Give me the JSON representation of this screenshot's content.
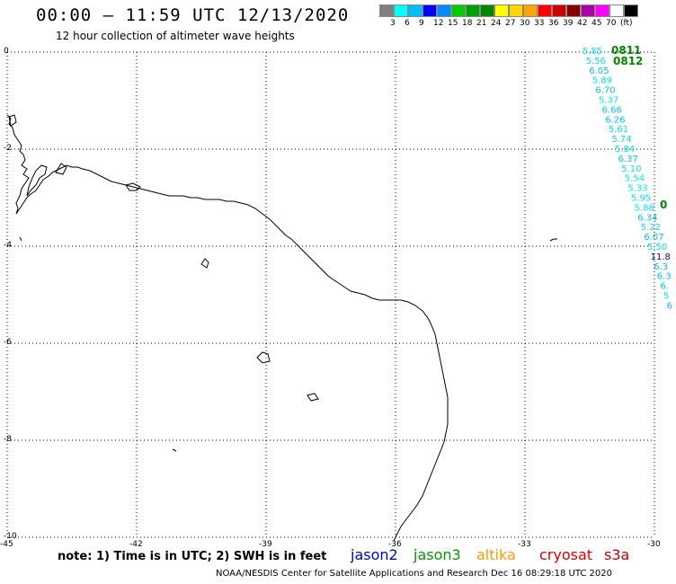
{
  "header": {
    "title": "00:00 – 11:59 UTC 12/13/2020",
    "subtitle": "12 hour collection of altimeter wave heights"
  },
  "legend": {
    "swatches": [
      "#808080",
      "#00ffff",
      "#00bfff",
      "#0000ff",
      "#008bff",
      "#00cc00",
      "#00a000",
      "#008800",
      "#ffff00",
      "#ffd700",
      "#ffa500",
      "#ff0000",
      "#cc0000",
      "#880000",
      "#aa00aa",
      "#ff00ff",
      "#ffffff",
      "#000000"
    ],
    "labels": [
      "3",
      "6",
      "9",
      "12",
      "15",
      "18",
      "21",
      "24",
      "27",
      "30",
      "33",
      "36",
      "39",
      "42",
      "45",
      "70",
      "(ft)"
    ]
  },
  "axes": {
    "x_ticks": [
      "-45",
      "-42",
      "-39",
      "-36",
      "-33",
      "-30"
    ],
    "y_ticks": [
      "0",
      "-2",
      "-4",
      "-6",
      "-8",
      "-10"
    ]
  },
  "track_times": [
    {
      "label": "0811",
      "color": "#008800"
    },
    {
      "label": "0812",
      "color": "#008800"
    }
  ],
  "wave_heights": [
    {
      "value": "5.85",
      "color": "#00e5ee"
    },
    {
      "value": "5.56",
      "color": "#00e5ee"
    },
    {
      "value": "6.05",
      "color": "#00bfff"
    },
    {
      "value": "5.89",
      "color": "#00e5ee"
    },
    {
      "value": "6.70",
      "color": "#00bfff"
    },
    {
      "value": "5.37",
      "color": "#00e5ee"
    },
    {
      "value": "6.66",
      "color": "#00bfff"
    },
    {
      "value": "6.26",
      "color": "#00bfff"
    },
    {
      "value": "5.61",
      "color": "#00e5ee"
    },
    {
      "value": "5.74",
      "color": "#00e5ee"
    },
    {
      "value": "5.84",
      "color": "#00e5ee"
    },
    {
      "value": "6.37",
      "color": "#00bfff"
    },
    {
      "value": "5.10",
      "color": "#00e5ee"
    },
    {
      "value": "5.54",
      "color": "#00e5ee"
    },
    {
      "value": "5.33",
      "color": "#00e5ee"
    },
    {
      "value": "5.95",
      "color": "#00e5ee"
    },
    {
      "value": "5.88",
      "color": "#00e5ee"
    },
    {
      "value": "6.34",
      "color": "#00bfff"
    },
    {
      "value": "5.22",
      "color": "#00e5ee"
    },
    {
      "value": "6.07",
      "color": "#00bfff"
    },
    {
      "value": "5.50",
      "color": "#00e5ee"
    },
    {
      "value": "11.8",
      "color": "#0000cc"
    },
    {
      "value": "6.3",
      "color": "#00bfff"
    },
    {
      "value": "6.3",
      "color": "#00bfff"
    },
    {
      "value": "6.",
      "color": "#00bfff"
    },
    {
      "value": "5",
      "color": "#00e5ee"
    },
    {
      "value": "6",
      "color": "#00bfff"
    }
  ],
  "edge_marker": {
    "value": "0",
    "color": "#008800"
  },
  "footer": {
    "note": "note: 1) Time is in UTC; 2) SWH is in feet",
    "satellites": [
      {
        "name": "jason2",
        "color": "#0000cc"
      },
      {
        "name": "jason3",
        "color": "#009900"
      },
      {
        "name": "altika",
        "color": "#ff9900"
      },
      {
        "name": "cryosat",
        "color": "#dd0000"
      },
      {
        "name": "s3a",
        "color": "#cc0000"
      }
    ],
    "credit": "NOAA/NESDIS Center for Satellite Applications and Research    Dec 16 08:29:18 UTC 2020"
  }
}
